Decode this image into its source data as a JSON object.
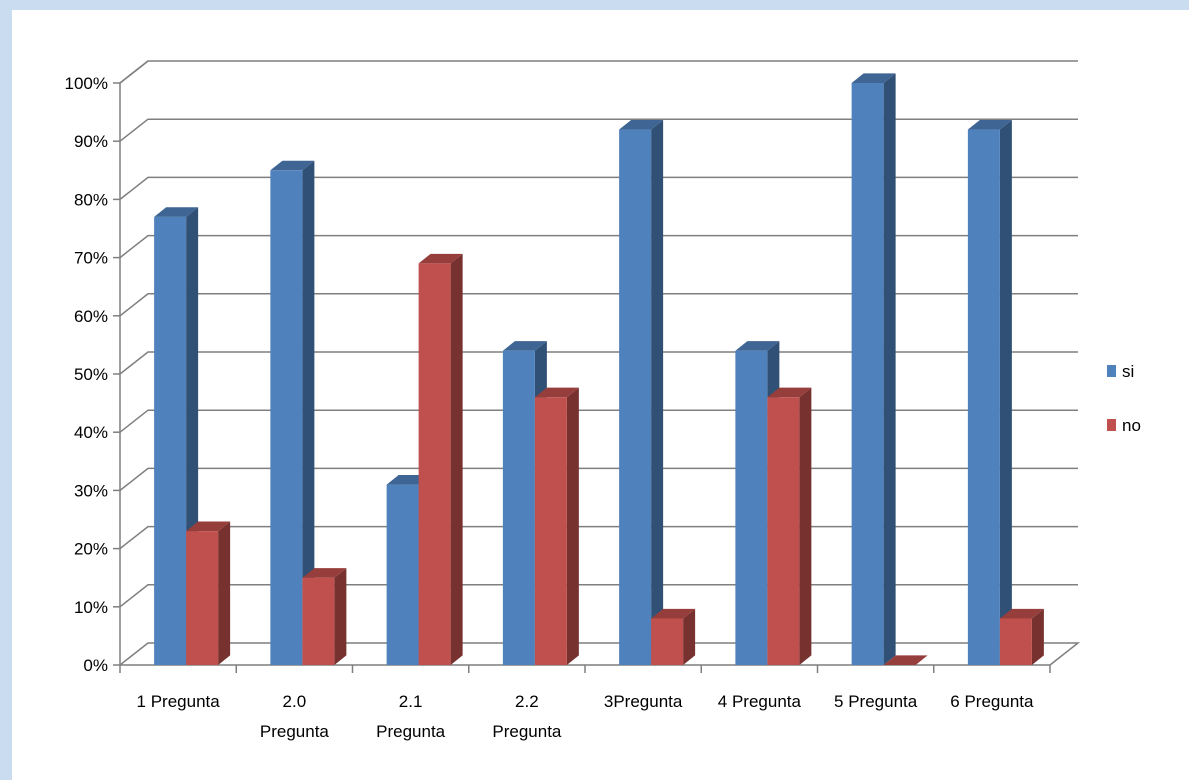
{
  "colors": {
    "si": "#4f81bd",
    "no": "#c0504d",
    "gridline": "#7f7f7f",
    "background_outer": "#c9dcf0"
  },
  "chart_data": {
    "type": "bar",
    "style": "3d-clustered-column",
    "categories": [
      [
        "1 Pregunta"
      ],
      [
        "2.0",
        "Pregunta"
      ],
      [
        "2.1",
        "Pregunta"
      ],
      [
        "2.2",
        "Pregunta"
      ],
      [
        "3Pregunta"
      ],
      [
        "4 Pregunta"
      ],
      [
        "5 Pregunta"
      ],
      [
        "6 Pregunta"
      ]
    ],
    "series": [
      {
        "name": "si",
        "values": [
          77,
          85,
          31,
          54,
          92,
          54,
          100,
          92
        ]
      },
      {
        "name": "no",
        "values": [
          23,
          15,
          69,
          46,
          8,
          46,
          0,
          8
        ]
      }
    ],
    "y_tick_labels": [
      "0%",
      "10%",
      "20%",
      "30%",
      "40%",
      "50%",
      "60%",
      "70%",
      "80%",
      "90%",
      "100%"
    ],
    "ylim": [
      0,
      100
    ],
    "y_unit": "%",
    "grid": true,
    "legend_position": "right",
    "title": "",
    "xlabel": "",
    "ylabel": ""
  }
}
